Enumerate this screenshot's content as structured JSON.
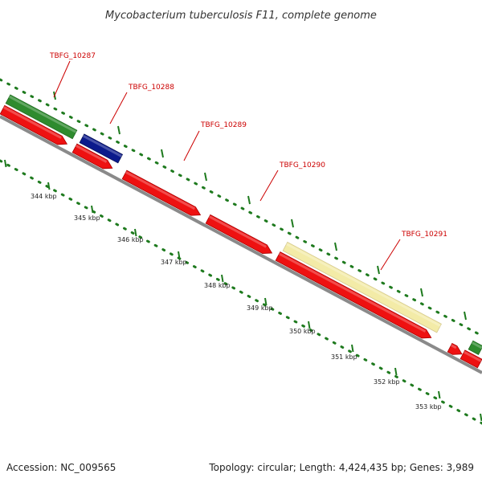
{
  "title": "Mycobacterium tuberculosis F11, complete genome",
  "footer": {
    "accession": "Accession: NC_009565",
    "summary": "Topology: circular; Length: 4,424,435 bp; Genes: 3,989"
  },
  "colors": {
    "forward_gene": "#2e8b2e",
    "reverse_gene": "#ee1111",
    "blue_gene": "#0b1a8c",
    "pseudo_gene": "#f3eba7",
    "backbone": "#8a8a8a",
    "dots": "#1e7a1e",
    "label": "#cc0000"
  },
  "gene_labels": [
    "TBFG_10287",
    "TBFG_10288",
    "TBFG_10289",
    "TBFG_10290",
    "TBFG_10291"
  ],
  "ruler_labels": [
    "344 kbp",
    "345 kbp",
    "346 kbp",
    "347 kbp",
    "348 kbp",
    "349 kbp",
    "350 kbp",
    "351 kbp",
    "352 kbp",
    "353 kbp"
  ]
}
